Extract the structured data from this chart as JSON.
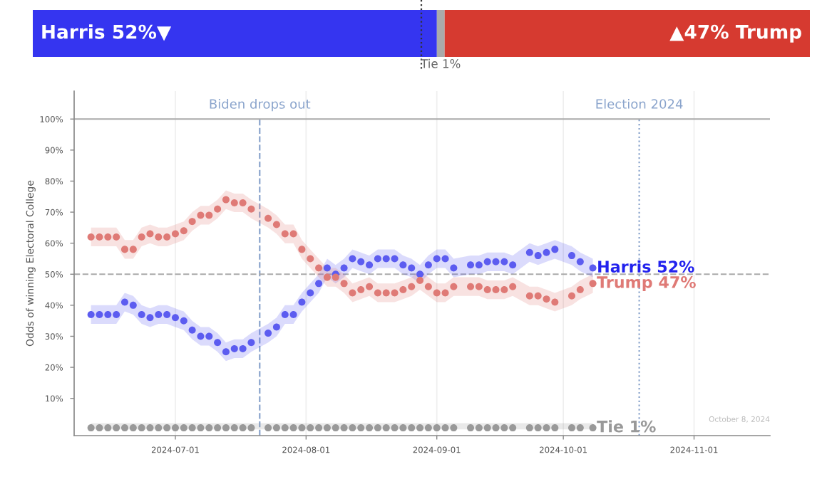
{
  "chart_data": [
    {
      "type": "bar",
      "orientation": "horizontal",
      "stacked": true,
      "categories": [
        null
      ],
      "xlim": [
        0,
        100
      ],
      "tick_labels": false,
      "series": [
        {
          "color": "#3535f0",
          "values": [
            52
          ],
          "value_labels": [
            "Harris 52%▼"
          ]
        },
        {
          "color": "#aaaaaa",
          "values": [
            1
          ],
          "value_labels": [
            "Tie 1%"
          ]
        },
        {
          "color": "#d63a30",
          "values": [
            47
          ],
          "value_labels": [
            "▲47% Trump"
          ]
        }
      ],
      "ref_lines": [
        {
          "axis": "x",
          "value": 50,
          "line_style": "dotted",
          "color": "#333333"
        }
      ]
    },
    {
      "type": "scatter",
      "ylabel": "Odds of winning Electoral College",
      "xlim": [
        "2024-06-07",
        "2024-11-19"
      ],
      "ylim": [
        -2,
        109
      ],
      "xticks": [
        "2024-07-01",
        "2024-08-01",
        "2024-09-01",
        "2024-10-01",
        "2024-11-01"
      ],
      "yticks": [
        {
          "value": 10,
          "label": "10%"
        },
        {
          "value": 20,
          "label": "20%"
        },
        {
          "value": 30,
          "label": "30%"
        },
        {
          "value": 40,
          "label": "40%"
        },
        {
          "value": 50,
          "label": "50%"
        },
        {
          "value": 60,
          "label": "60%"
        },
        {
          "value": 70,
          "label": "70%"
        },
        {
          "value": 80,
          "label": "80%"
        },
        {
          "value": 90,
          "label": "90%"
        },
        {
          "value": 100,
          "label": "100%"
        }
      ],
      "grid": "x",
      "marker": "circle",
      "x": [
        "2024-06-11",
        "2024-06-13",
        "2024-06-15",
        "2024-06-17",
        "2024-06-19",
        "2024-06-21",
        "2024-06-23",
        "2024-06-25",
        "2024-06-27",
        "2024-06-29",
        "2024-07-01",
        "2024-07-03",
        "2024-07-05",
        "2024-07-07",
        "2024-07-09",
        "2024-07-11",
        "2024-07-13",
        "2024-07-15",
        "2024-07-17",
        "2024-07-19",
        "2024-07-23",
        "2024-07-25",
        "2024-07-27",
        "2024-07-29",
        "2024-07-31",
        "2024-08-02",
        "2024-08-04",
        "2024-08-06",
        "2024-08-08",
        "2024-08-10",
        "2024-08-12",
        "2024-08-14",
        "2024-08-16",
        "2024-08-18",
        "2024-08-20",
        "2024-08-22",
        "2024-08-24",
        "2024-08-26",
        "2024-08-28",
        "2024-08-30",
        "2024-09-01",
        "2024-09-03",
        "2024-09-05",
        "2024-09-09",
        "2024-09-11",
        "2024-09-13",
        "2024-09-15",
        "2024-09-17",
        "2024-09-19",
        "2024-09-23",
        "2024-09-25",
        "2024-09-27",
        "2024-09-29",
        "2024-10-03",
        "2024-10-05",
        "2024-10-08"
      ],
      "series": [
        {
          "name": "Harris 52%",
          "color": "#5c5cf0",
          "values": [
            37,
            37,
            37,
            37,
            41,
            40,
            37,
            36,
            37,
            37,
            36,
            35,
            32,
            30,
            30,
            28,
            25,
            26,
            26,
            28,
            31,
            33,
            37,
            37,
            41,
            44,
            47,
            52,
            50,
            52,
            55,
            54,
            53,
            55,
            55,
            55,
            53,
            52,
            50,
            53,
            55,
            55,
            52,
            53,
            53,
            54,
            54,
            54,
            53,
            57,
            56,
            57,
            58,
            56,
            54,
            52
          ],
          "lower": [
            34,
            34,
            34,
            34,
            38,
            37,
            34,
            33,
            34,
            34,
            33,
            32,
            29,
            27,
            27,
            25,
            22,
            23,
            23,
            25,
            28,
            30,
            34,
            34,
            38,
            41,
            44,
            49,
            47,
            49,
            52,
            51,
            50,
            52,
            52,
            52,
            50,
            49,
            47,
            50,
            52,
            52,
            49,
            50,
            50,
            51,
            51,
            51,
            50,
            54,
            53,
            54,
            55,
            53,
            51,
            49
          ],
          "upper": [
            40,
            40,
            40,
            40,
            44,
            43,
            40,
            39,
            40,
            40,
            39,
            38,
            35,
            33,
            33,
            31,
            28,
            29,
            29,
            31,
            34,
            36,
            40,
            40,
            44,
            47,
            50,
            55,
            53,
            55,
            58,
            57,
            56,
            58,
            58,
            58,
            56,
            55,
            53,
            56,
            58,
            58,
            55,
            56,
            56,
            57,
            57,
            57,
            56,
            60,
            59,
            60,
            61,
            59,
            57,
            55
          ]
        },
        {
          "name": "Trump 47%",
          "color": "#df7a76",
          "values": [
            62,
            62,
            62,
            62,
            58,
            58,
            62,
            63,
            62,
            62,
            63,
            64,
            67,
            69,
            69,
            71,
            74,
            73,
            73,
            71,
            68,
            66,
            63,
            63,
            58,
            55,
            52,
            49,
            49,
            47,
            44,
            45,
            46,
            44,
            44,
            44,
            45,
            46,
            48,
            46,
            44,
            44,
            46,
            46,
            46,
            45,
            45,
            45,
            46,
            43,
            43,
            42,
            41,
            43,
            45,
            47
          ],
          "lower": [
            59,
            59,
            59,
            59,
            55,
            55,
            59,
            60,
            59,
            59,
            60,
            61,
            64,
            66,
            66,
            68,
            71,
            70,
            70,
            68,
            65,
            63,
            60,
            60,
            55,
            52,
            49,
            46,
            46,
            44,
            41,
            42,
            43,
            41,
            41,
            41,
            42,
            43,
            45,
            43,
            41,
            41,
            43,
            43,
            43,
            42,
            42,
            42,
            43,
            40,
            40,
            39,
            38,
            40,
            42,
            44
          ],
          "upper": [
            65,
            65,
            65,
            65,
            61,
            61,
            65,
            66,
            65,
            65,
            66,
            67,
            70,
            72,
            72,
            74,
            77,
            76,
            76,
            74,
            71,
            69,
            66,
            66,
            61,
            58,
            55,
            52,
            52,
            50,
            47,
            48,
            49,
            47,
            47,
            47,
            48,
            49,
            51,
            49,
            47,
            47,
            49,
            49,
            49,
            48,
            48,
            48,
            49,
            46,
            46,
            45,
            44,
            46,
            48,
            50
          ]
        },
        {
          "name": "Tie 1%",
          "color": "#999999",
          "values": [
            0.5,
            0.5,
            0.5,
            0.5,
            0.5,
            0.5,
            0.5,
            0.5,
            0.5,
            0.5,
            0.5,
            0.5,
            0.5,
            0.5,
            0.5,
            0.5,
            0.5,
            0.5,
            0.5,
            0.5,
            0.5,
            0.5,
            0.5,
            0.5,
            0.5,
            0.5,
            0.5,
            0.5,
            0.5,
            0.5,
            0.5,
            0.5,
            0.5,
            0.5,
            0.5,
            0.5,
            0.5,
            0.5,
            0.5,
            0.5,
            0.5,
            0.5,
            0.5,
            0.5,
            0.5,
            0.5,
            0.5,
            0.5,
            0.5,
            0.5,
            0.5,
            0.5,
            0.5,
            0.5,
            0.5,
            0.5
          ],
          "lower": [
            0,
            0,
            0,
            0,
            0,
            0,
            0,
            0,
            0,
            0,
            0,
            0,
            0,
            0,
            0,
            0,
            0,
            0,
            0,
            0,
            0,
            0,
            0,
            0,
            0,
            0,
            0,
            0,
            0,
            0,
            0,
            0,
            0,
            0,
            0,
            0,
            0,
            0,
            0,
            0,
            0,
            0,
            0,
            0,
            0,
            0,
            0,
            0,
            0,
            0,
            0,
            0,
            0,
            0,
            0,
            0
          ],
          "upper": [
            2,
            2,
            2,
            2,
            2,
            2,
            2,
            2,
            2,
            2,
            2,
            2,
            2,
            2,
            2,
            2,
            2,
            2,
            2,
            2,
            2,
            2,
            2,
            2,
            2,
            2,
            2,
            2,
            2,
            2,
            2,
            2,
            2,
            2,
            2,
            2,
            2,
            2,
            2,
            2,
            2,
            2,
            2,
            2,
            2,
            2,
            2,
            2,
            2,
            2,
            2,
            2,
            2,
            2,
            2,
            2
          ]
        }
      ],
      "ref_lines": [
        {
          "axis": "x",
          "value": "2024-07-21",
          "label": "Biden drops out",
          "line_style": "dashed",
          "color": "#8aa4cc"
        },
        {
          "axis": "x",
          "value": "2024-10-19",
          "label": "Election 2024",
          "line_style": "dotted",
          "color": "#8aa4cc"
        },
        {
          "axis": "y",
          "value": 100,
          "line_style": "solid",
          "color": "#aaaaaa"
        },
        {
          "axis": "y",
          "value": 50,
          "line_style": "dashed",
          "color": "#aaaaaa"
        }
      ],
      "annotations": [
        "October 8, 2024"
      ]
    }
  ]
}
